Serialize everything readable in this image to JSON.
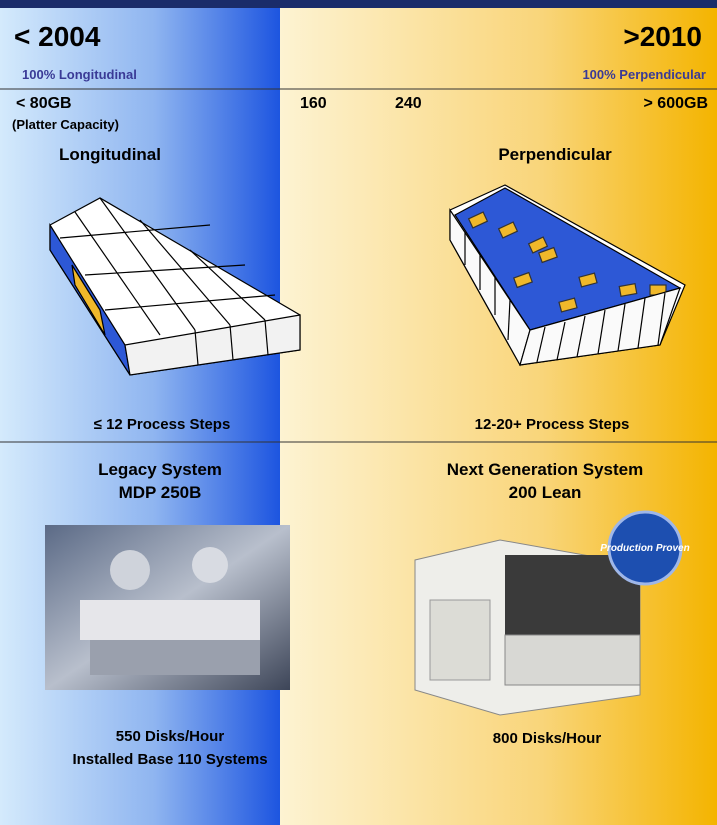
{
  "header": {
    "left_year": "< 2004",
    "right_year": ">2010",
    "left_share": "100% Longitudinal",
    "right_share": "100% Perpendicular"
  },
  "capacity": {
    "labels": [
      "< 80GB",
      "160",
      "240",
      "> 600GB"
    ],
    "caption": "(Platter Capacity)"
  },
  "recording": {
    "left": {
      "title": "Longitudinal",
      "steps": "≤ 12 Process Steps"
    },
    "right": {
      "title": "Perpendicular",
      "steps": "12-20+ Process Steps"
    }
  },
  "systems": {
    "left": {
      "title": "Legacy System",
      "model": "MDP 250B",
      "rate": "550 Disks/Hour",
      "base": "Installed Base 110 Systems"
    },
    "right": {
      "title": "Next Generation System",
      "model": "200 Lean",
      "rate": "800 Disks/Hour",
      "badge": "Production Proven"
    }
  }
}
